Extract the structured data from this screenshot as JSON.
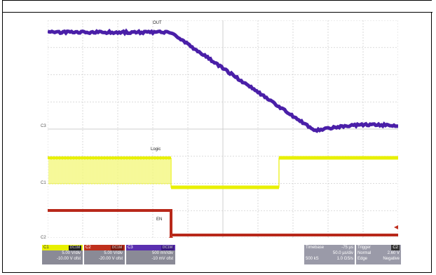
{
  "traces": {
    "out_label": "OUT",
    "logic_label": "Logic",
    "en_label": "EN"
  },
  "channel_markers": {
    "c3": "C3",
    "c1": "C1",
    "c2": "C2"
  },
  "channels": [
    {
      "id": "C1",
      "tag": "DC1M",
      "scale": "5.00 V/div",
      "offset": "-10.00 V ofst",
      "color": "#e8f000"
    },
    {
      "id": "C2",
      "tag": "DC1M",
      "scale": "5.00 V/div",
      "offset": "-20.00 V ofst",
      "color": "#c0301c"
    },
    {
      "id": "C3",
      "tag": "DC1M",
      "scale": "500 mV/div",
      "offset": "-10 mV ofst",
      "color": "#5a2fb0"
    }
  ],
  "timebase": {
    "label": "Timebase",
    "value": "-75 µs",
    "per_div": "50.0 µs/div",
    "samples": "500 kS",
    "rate": "1.0 GS/s"
  },
  "trigger": {
    "label": "Trigger",
    "channel": "C2",
    "mode": "Normal",
    "level": "2.60 V",
    "type": "Edge",
    "slope": "Negative"
  },
  "colors": {
    "ch1": "#e8f000",
    "ch2": "#b8281a",
    "ch3": "#4a1fa8",
    "grid": "#cfcfcf"
  }
}
